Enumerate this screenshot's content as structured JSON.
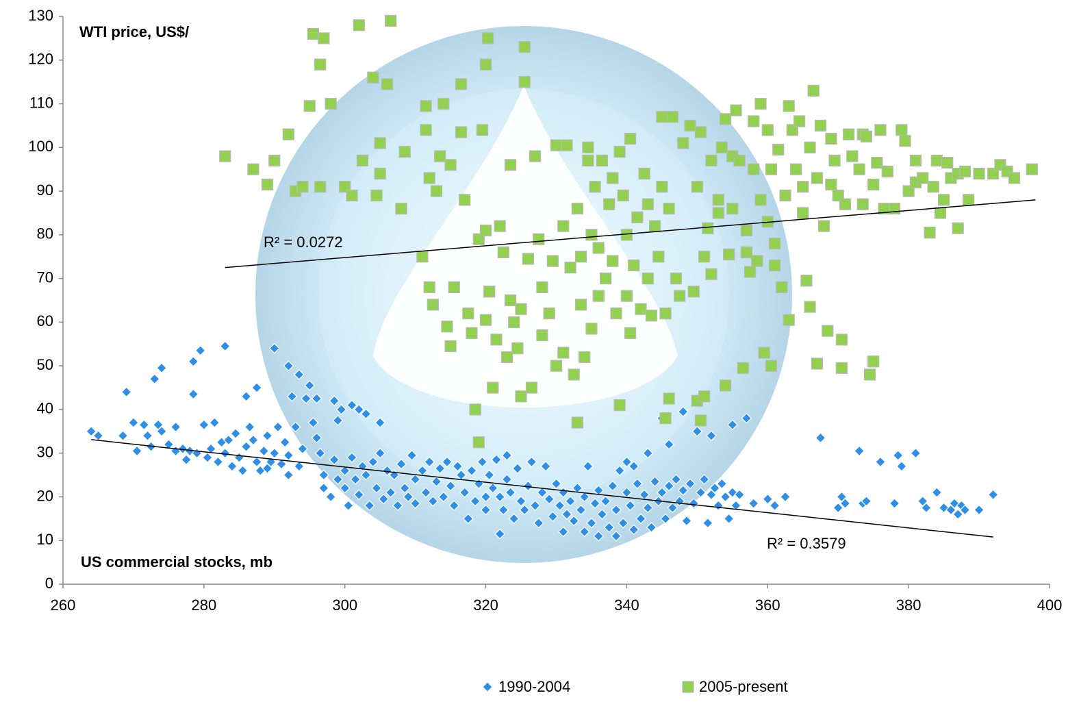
{
  "chart_data": {
    "type": "scatter",
    "y_label": "WTI price, US$/",
    "annotation": "US commercial stocks, mb",
    "xlim": [
      260,
      400
    ],
    "xticks": [
      260,
      280,
      300,
      320,
      340,
      360,
      380,
      400
    ],
    "ylim": [
      0,
      130
    ],
    "yticks": [
      0,
      10,
      20,
      30,
      40,
      50,
      60,
      70,
      80,
      90,
      100,
      110,
      120,
      130
    ],
    "legend": "bottom",
    "series": [
      {
        "name": "1990-2004",
        "color": "#2f8ee6",
        "marker": "diamond",
        "x": [
          264,
          265,
          268.5,
          269,
          270,
          270.5,
          271.5,
          272,
          272.5,
          273,
          273.5,
          274,
          274,
          275,
          276,
          276,
          277,
          277.5,
          278,
          278.5,
          278.5,
          279,
          279.5,
          280,
          280.5,
          281,
          281.5,
          282,
          282.5,
          283,
          283,
          283.5,
          284,
          284.5,
          285,
          285.5,
          286,
          286,
          286.5,
          287,
          287.5,
          287.5,
          288,
          288.5,
          289,
          289,
          289.5,
          290,
          290,
          290.5,
          291,
          291.5,
          292,
          292,
          292,
          292.5,
          293,
          293.5,
          293.5,
          294,
          294.5,
          295,
          295.5,
          296,
          296,
          296.5,
          297,
          297,
          298,
          298.5,
          298.5,
          299,
          299,
          299.5,
          300,
          300,
          300.5,
          301,
          301,
          301.5,
          302,
          302,
          302.5,
          303,
          303,
          303.5,
          304,
          304.5,
          305,
          305,
          305.5,
          306,
          306.5,
          307,
          307.5,
          308,
          308.5,
          309,
          309.5,
          310,
          310,
          311,
          311.5,
          312,
          312.5,
          313,
          313.5,
          314,
          314.5,
          315,
          315.5,
          316,
          316.5,
          317,
          317.5,
          318,
          318.5,
          319,
          319.5,
          320,
          320,
          320.5,
          321,
          321.5,
          322,
          322,
          322.5,
          323,
          323,
          323.5,
          324,
          324.5,
          325,
          325.5,
          326,
          326.5,
          327,
          327.5,
          328,
          328.5,
          329,
          329.5,
          330,
          330.5,
          331,
          331,
          331.5,
          332,
          332.5,
          333,
          333.5,
          334,
          334,
          334.5,
          335,
          335.5,
          336,
          336,
          336.5,
          337,
          337.5,
          338,
          338.5,
          338.5,
          339,
          339.5,
          340,
          340,
          340.5,
          341,
          341,
          341.5,
          342,
          342.5,
          343,
          343,
          343.5,
          344,
          344.5,
          345,
          345,
          345.5,
          346,
          346,
          346.5,
          347,
          347.5,
          348,
          348,
          348.5,
          349,
          349.5,
          350,
          350.5,
          351,
          351.5,
          352,
          352,
          352.5,
          353,
          353.5,
          354,
          354.5,
          355,
          355,
          355.5,
          356,
          357,
          358,
          360,
          361,
          362.5,
          367.5,
          370,
          370.5,
          371,
          373,
          373.5,
          374,
          376,
          378,
          378.5,
          379,
          381,
          382,
          382.5,
          384,
          385,
          386,
          386.5,
          387,
          387.5,
          388,
          390,
          392
        ],
        "values": [
          35,
          34,
          34,
          44,
          37,
          30.5,
          36.5,
          34,
          31.5,
          47,
          36.5,
          49.5,
          35,
          32,
          36,
          30.5,
          31,
          28.5,
          30.5,
          51,
          43.5,
          30,
          53.5,
          36.5,
          29,
          31,
          37,
          28,
          32.5,
          54.5,
          30,
          33,
          27,
          34.5,
          29,
          26,
          31.5,
          43,
          36,
          33,
          45,
          28,
          26,
          30.5,
          34,
          26.5,
          28,
          54,
          30,
          36,
          27.5,
          32.5,
          50,
          29.5,
          25,
          43,
          36,
          48,
          27,
          31,
          42.5,
          45.5,
          37,
          33.5,
          42.5,
          30,
          25,
          22,
          20,
          28.5,
          42,
          24,
          37.5,
          40,
          22,
          26,
          18,
          41,
          29,
          24,
          20.5,
          40,
          27,
          25,
          39,
          18,
          28,
          22,
          30,
          37,
          19.5,
          26,
          21,
          25,
          18,
          27.5,
          22,
          20,
          29.5,
          24,
          18.5,
          26,
          21,
          28,
          19,
          23.5,
          26.5,
          20,
          28,
          22.5,
          18,
          27,
          25,
          21,
          15,
          26,
          19,
          23,
          28,
          20,
          17,
          25,
          22,
          28.5,
          11.5,
          20,
          17,
          29.5,
          24,
          21,
          15,
          26.5,
          19,
          17,
          22.5,
          28,
          18,
          14,
          21,
          27,
          19.5,
          15.5,
          23,
          18,
          12,
          21,
          16,
          19,
          14.5,
          22,
          17,
          12,
          20,
          27,
          14,
          18.5,
          11,
          21.5,
          16,
          19,
          13,
          22.5,
          11,
          17,
          26,
          14,
          21,
          28,
          18,
          12.5,
          27,
          23,
          15,
          20.5,
          30,
          17.5,
          13,
          23.5,
          19,
          38,
          21,
          15,
          32,
          22.5,
          17.5,
          24,
          19,
          39.5,
          21.5,
          14.5,
          23,
          18.5,
          35,
          21,
          24,
          14,
          34,
          20.5,
          22,
          18,
          23,
          20,
          15,
          36.5,
          21,
          18,
          20.5,
          38,
          18.5,
          19.5,
          18,
          20,
          33.5,
          17.5,
          20,
          18.5,
          30.5,
          18.5,
          19,
          28,
          18.5,
          29.5,
          27,
          30,
          19,
          17.5,
          21,
          17.5,
          17,
          18.5,
          16,
          18,
          17,
          17,
          20.5
        ],
        "trendline": {
          "x": [
            264,
            392
          ],
          "values": [
            33.1,
            10.8
          ],
          "label": "R² = 0.3579"
        }
      },
      {
        "name": "2005-present",
        "color": "#92d050",
        "marker": "square",
        "x": [
          283,
          287,
          289,
          290,
          292,
          293,
          294,
          295,
          295.5,
          296.5,
          297,
          296.5,
          298,
          300,
          301,
          302,
          302.5,
          304,
          304.5,
          305,
          305,
          306,
          306.5,
          308,
          308.5,
          311,
          311.5,
          311.5,
          312,
          312,
          312.5,
          313,
          313.5,
          314,
          314.5,
          315,
          315,
          315.5,
          316.5,
          316.5,
          317,
          317.5,
          318,
          318.5,
          319,
          319,
          319.5,
          320,
          320.3,
          320,
          320.5,
          320,
          321,
          321.5,
          322,
          322.5,
          323,
          323.5,
          323.5,
          324,
          324.5,
          325,
          325,
          325.5,
          325.5,
          326,
          326.5,
          327,
          327.5,
          328,
          328,
          329,
          329.5,
          330,
          330,
          331,
          331,
          331.5,
          332,
          332.5,
          333,
          333,
          333.5,
          333.5,
          334,
          334.5,
          334.5,
          335,
          335,
          335.5,
          336,
          336,
          336.5,
          337,
          337.5,
          338,
          338,
          338.5,
          339,
          339,
          339.5,
          340,
          340,
          340.5,
          340.5,
          341,
          341.5,
          342,
          342.5,
          343,
          343,
          343.5,
          344,
          344.5,
          345,
          345,
          345.5,
          345.5,
          346,
          346,
          346.5,
          347,
          347.5,
          348,
          349,
          349.5,
          350,
          350,
          350.5,
          350.5,
          351,
          351,
          351.5,
          352,
          352,
          353,
          353,
          353.5,
          354,
          354,
          354.5,
          355,
          355,
          355.5,
          356,
          356.5,
          357,
          357,
          357.5,
          358,
          358,
          358.5,
          359,
          359,
          359.5,
          360,
          360,
          360.5,
          360.5,
          361,
          361,
          361.5,
          362,
          362.5,
          363,
          363,
          363.5,
          364,
          364.5,
          365,
          365,
          365.5,
          366,
          366,
          366.5,
          367,
          367,
          367.5,
          368,
          368.5,
          369,
          369,
          369.5,
          370,
          370.5,
          370.5,
          371,
          371.5,
          372,
          373,
          373.5,
          373.5,
          374,
          374.5,
          375,
          375,
          375.5,
          376,
          376.5,
          377,
          378,
          379,
          379.5,
          380,
          381,
          381,
          382,
          383,
          383.5,
          384,
          384.5,
          385,
          385.5,
          386,
          387,
          387,
          388,
          388.5,
          390,
          392,
          393,
          394,
          395,
          397.5
        ],
        "values": [
          98,
          95,
          91.5,
          97,
          103,
          90,
          91,
          109.5,
          126,
          119,
          125,
          91,
          110,
          91,
          89,
          128,
          97,
          116,
          89,
          101,
          94,
          114.5,
          129,
          86,
          99,
          75,
          104,
          109.5,
          93,
          68,
          64,
          90,
          98,
          110,
          59,
          96,
          54.5,
          68,
          114.5,
          103.5,
          88,
          62,
          57.5,
          40,
          32.5,
          79,
          104,
          119,
          125,
          81,
          67,
          60.5,
          45,
          56,
          82,
          76,
          52,
          65,
          96,
          60,
          54,
          43,
          63,
          115,
          123,
          74.5,
          45,
          98,
          79,
          68,
          57,
          62,
          74,
          50,
          100.5,
          82,
          53,
          100.5,
          72.5,
          48,
          37,
          86,
          64,
          75,
          52,
          100,
          97,
          80,
          58.5,
          91,
          77,
          66,
          97,
          70,
          87,
          93,
          74,
          62,
          41,
          99,
          89,
          80,
          66,
          102,
          57.5,
          73,
          84,
          63,
          94,
          87,
          70,
          61.5,
          82,
          75,
          107,
          91,
          38,
          62,
          86,
          42.5,
          107,
          70,
          66,
          101,
          105,
          67,
          91,
          42,
          37.5,
          103.5,
          75,
          43,
          81.5,
          97,
          71,
          88,
          85,
          100,
          106.5,
          45.5,
          75.5,
          98,
          86,
          108.5,
          97,
          49.5,
          81,
          76,
          71.5,
          106,
          95,
          74,
          110,
          88,
          53,
          104,
          83,
          50,
          95,
          78,
          73,
          99.5,
          68,
          89,
          109.5,
          60.5,
          104,
          95,
          106,
          91,
          85,
          69.5,
          100,
          63.5,
          113,
          50.5,
          93,
          105,
          82,
          58,
          102,
          91.5,
          97,
          89,
          56,
          49.5,
          87,
          103,
          98,
          95,
          103,
          87,
          102.5,
          48,
          51,
          91.5,
          96.5,
          104,
          86,
          94.5,
          86,
          104,
          101.5,
          90,
          92,
          97,
          93,
          80.5,
          91,
          97,
          85,
          88,
          96.5,
          93,
          94,
          81.5,
          94.5,
          88,
          94,
          94,
          96,
          94.5,
          93,
          95
        ],
        "trendline": {
          "x": [
            283,
            398
          ],
          "values": [
            72.5,
            88
          ],
          "label": "R² = 0.0272"
        }
      }
    ]
  }
}
